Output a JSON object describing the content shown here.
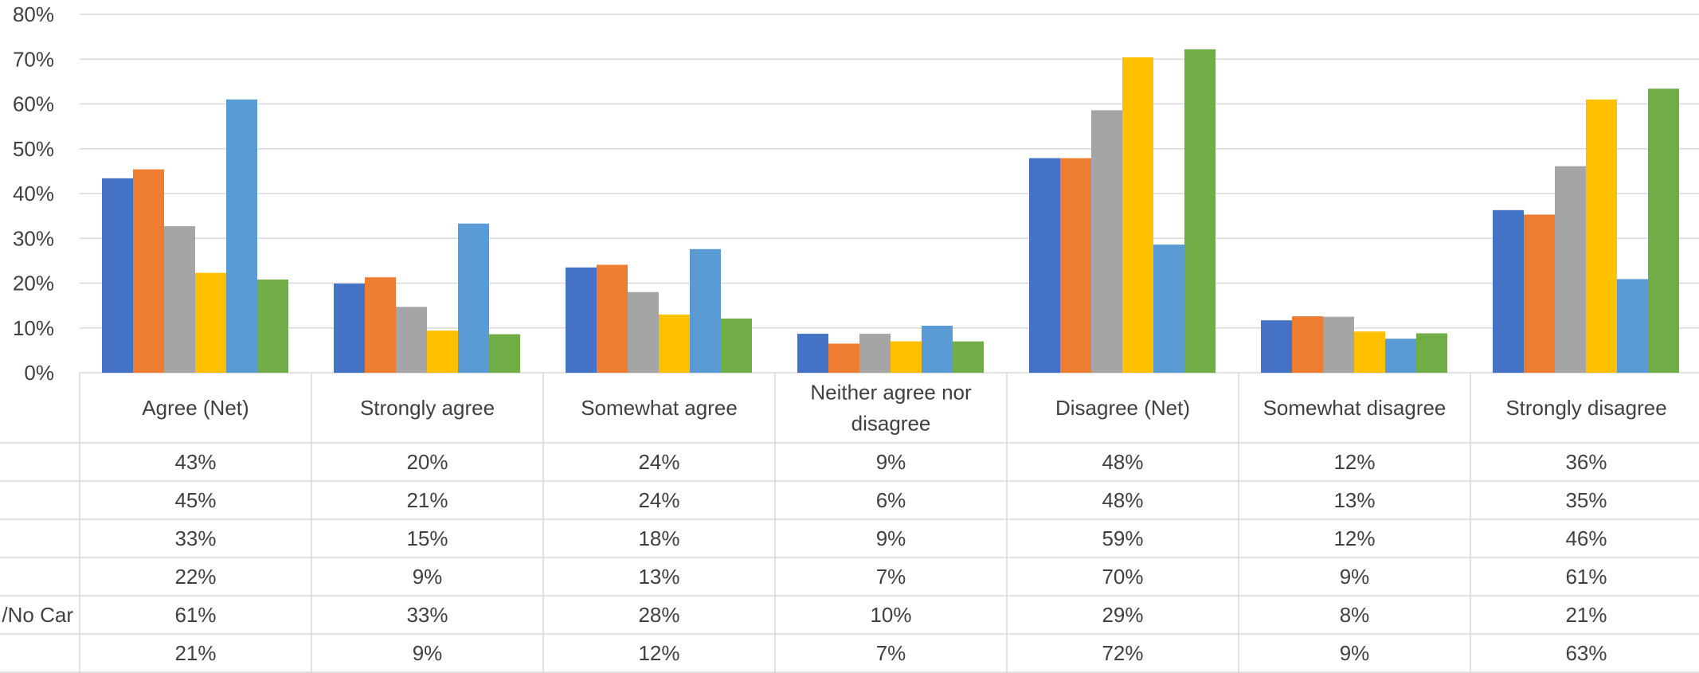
{
  "chart_data": {
    "type": "bar",
    "categories": [
      "Agree (Net)",
      "Strongly agree",
      "Somewhat agree",
      "Neither agree nor disagree",
      "Disagree (Net)",
      "Somewhat disagree",
      "Strongly disagree"
    ],
    "category_label_lines": [
      [
        "Agree (Net)"
      ],
      [
        "Strongly agree"
      ],
      [
        "Somewhat agree"
      ],
      [
        "Neither agree nor",
        "disagree"
      ],
      [
        "Disagree (Net)"
      ],
      [
        "Somewhat disagree"
      ],
      [
        "Strongly disagree"
      ]
    ],
    "series": [
      {
        "name": "",
        "color": "#4472C4",
        "values": [
          43.4,
          19.9,
          23.5,
          8.7,
          47.9,
          11.7,
          36.3
        ],
        "labels": [
          "43%",
          "20%",
          "24%",
          "9%",
          "48%",
          "12%",
          "36%"
        ]
      },
      {
        "name": "",
        "color": "#ED7D31",
        "values": [
          45.4,
          21.3,
          24.1,
          6.5,
          47.9,
          12.6,
          35.3
        ],
        "labels": [
          "45%",
          "21%",
          "24%",
          "6%",
          "48%",
          "13%",
          "35%"
        ]
      },
      {
        "name": "",
        "color": "#A5A5A5",
        "values": [
          32.7,
          14.7,
          18.0,
          8.7,
          58.6,
          12.5,
          46.1
        ],
        "labels": [
          "33%",
          "15%",
          "18%",
          "9%",
          "59%",
          "12%",
          "46%"
        ]
      },
      {
        "name": "",
        "color": "#FFC000",
        "values": [
          22.3,
          9.4,
          13.0,
          7.0,
          70.4,
          9.2,
          61.0
        ],
        "labels": [
          "22%",
          "9%",
          "13%",
          "7%",
          "70%",
          "9%",
          "61%"
        ]
      },
      {
        "name": "/No Car",
        "color": "#5B9BD5",
        "values": [
          61.0,
          33.3,
          27.6,
          10.5,
          28.6,
          7.6,
          20.9
        ],
        "labels": [
          "61%",
          "33%",
          "28%",
          "10%",
          "29%",
          "8%",
          "21%"
        ]
      },
      {
        "name": "",
        "color": "#70AD47",
        "values": [
          20.8,
          8.6,
          12.1,
          7.0,
          72.2,
          8.8,
          63.4
        ],
        "labels": [
          "21%",
          "9%",
          "12%",
          "7%",
          "72%",
          "9%",
          "63%"
        ]
      }
    ],
    "y_ticks": [
      "0%",
      "10%",
      "20%",
      "30%",
      "40%",
      "50%",
      "60%",
      "70%",
      "80%"
    ],
    "ylim": [
      0,
      80
    ],
    "grid": true,
    "data_table": true,
    "title": "",
    "xlabel": "",
    "ylabel": ""
  }
}
